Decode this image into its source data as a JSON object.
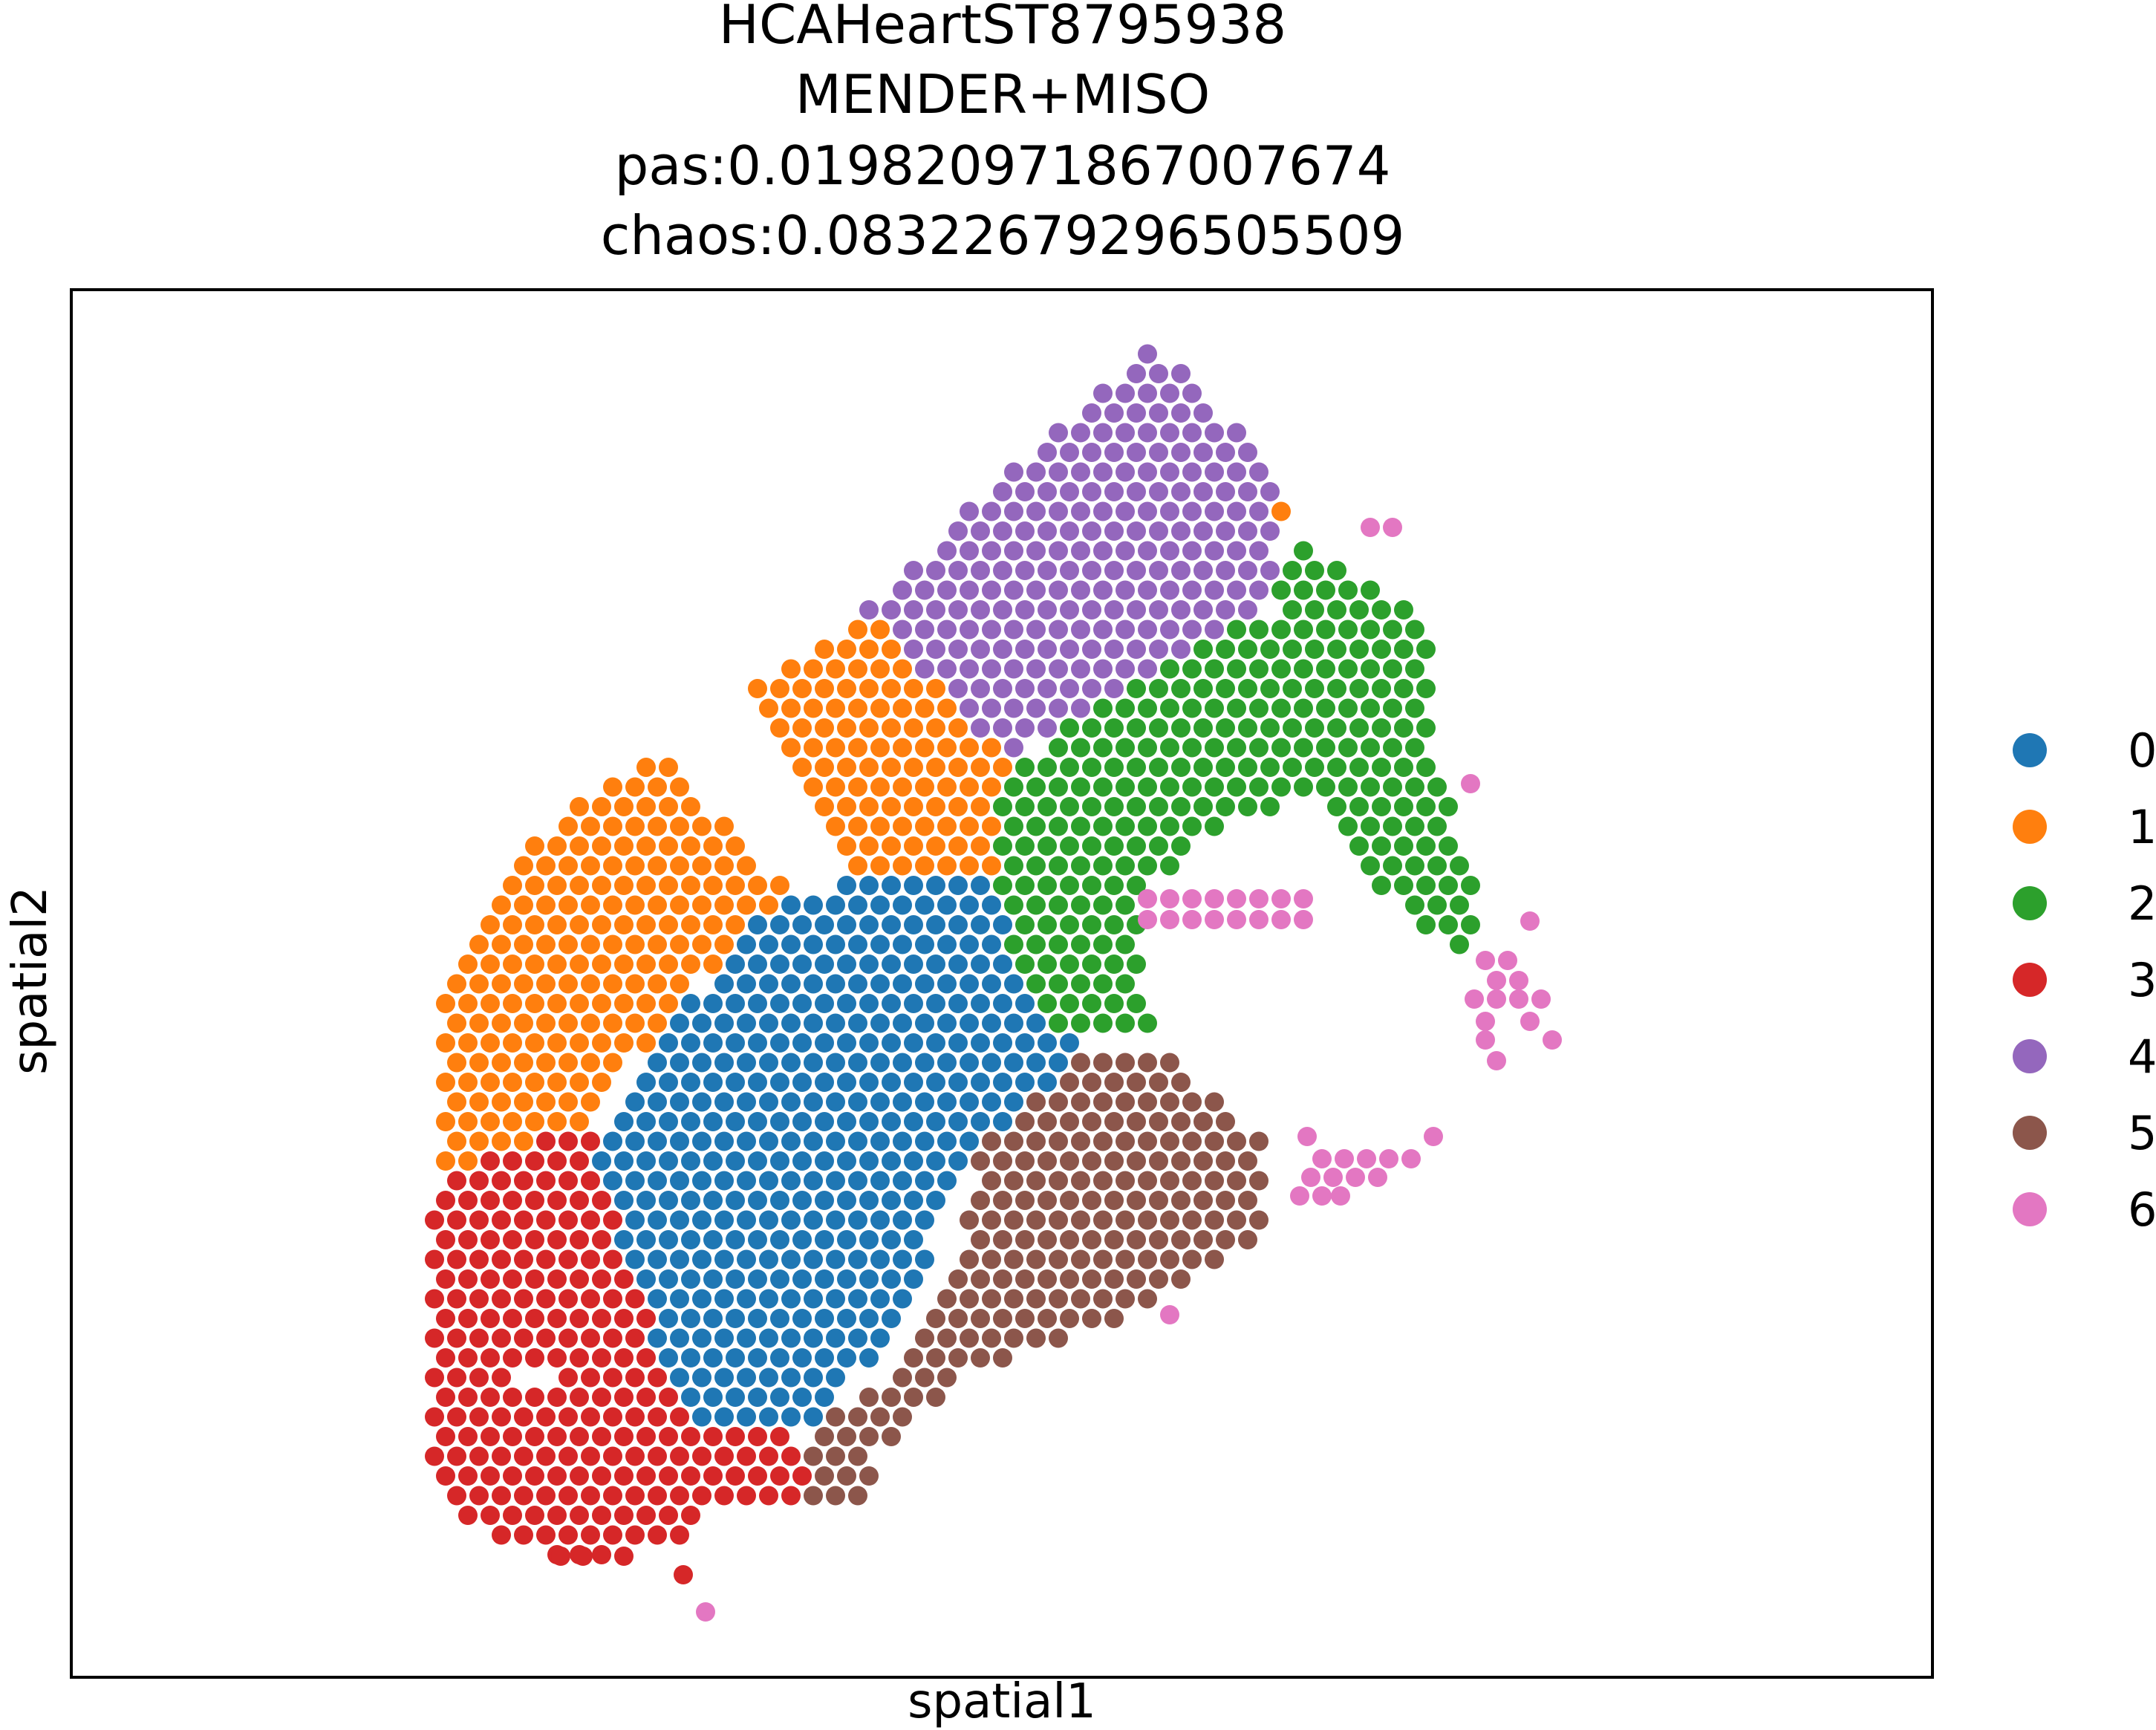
{
  "chart_data": {
    "type": "scatter",
    "title_lines": [
      "HCAHeartST8795938",
      "MENDER+MISO",
      "pas:0.01982097186700767​4",
      "chaos:0.08322679296505509"
    ],
    "xlabel": "spatial1",
    "ylabel": "spatial2",
    "grid": false,
    "ticks_shown": false,
    "legend_position": "right",
    "legend": [
      {
        "label": "0",
        "color": "#1f77b4"
      },
      {
        "label": "1",
        "color": "#ff7f0e"
      },
      {
        "label": "2",
        "color": "#2ca02c"
      },
      {
        "label": "3",
        "color": "#d62728"
      },
      {
        "label": "4",
        "color": "#9467bd"
      },
      {
        "label": "5",
        "color": "#8c564b"
      },
      {
        "label": "6",
        "color": "#e377c2"
      }
    ],
    "clusters": [
      {
        "label": "4",
        "region": [
          [
            1550,
            462
          ],
          [
            1715,
            620
          ],
          [
            1715,
            805
          ],
          [
            1505,
            925
          ],
          [
            1355,
            1015
          ],
          [
            1160,
            820
          ]
        ]
      },
      {
        "label": "1",
        "region": [
          [
            1170,
            825
          ],
          [
            1355,
            1010
          ],
          [
            1335,
            1190
          ],
          [
            1135,
            1180
          ],
          [
            1000,
            940
          ]
        ]
      },
      {
        "label": "1",
        "region": [
          [
            1715,
            670
          ],
          [
            1740,
            710
          ],
          [
            1700,
            790
          ],
          [
            1665,
            730
          ]
        ]
      },
      {
        "label": "1",
        "region": [
          [
            900,
            1020
          ],
          [
            1060,
            1200
          ],
          [
            920,
            1345
          ],
          [
            790,
            1510
          ],
          [
            600,
            1575
          ],
          [
            585,
            1340
          ],
          [
            700,
            1150
          ],
          [
            805,
            1060
          ]
        ]
      },
      {
        "label": "2",
        "region": [
          [
            1740,
            725
          ],
          [
            1920,
            830
          ],
          [
            1930,
            1000
          ],
          [
            2000,
            1240
          ],
          [
            1960,
            1290
          ],
          [
            1850,
            1185
          ],
          [
            1775,
            1060
          ],
          [
            1640,
            1115
          ],
          [
            1530,
            1220
          ],
          [
            1550,
            1395
          ],
          [
            1420,
            1405
          ],
          [
            1355,
            1250
          ],
          [
            1335,
            1050
          ],
          [
            1505,
            930
          ],
          [
            1715,
            820
          ]
        ]
      },
      {
        "label": "0",
        "region": [
          [
            1170,
            1185
          ],
          [
            1325,
            1185
          ],
          [
            1455,
            1420
          ],
          [
            1315,
            1550
          ],
          [
            1215,
            1760
          ],
          [
            1115,
            1915
          ],
          [
            925,
            1925
          ],
          [
            830,
            1650
          ],
          [
            800,
            1530
          ],
          [
            930,
            1345
          ],
          [
            1060,
            1200
          ]
        ]
      },
      {
        "label": "5",
        "region": [
          [
            1440,
            1420
          ],
          [
            1580,
            1420
          ],
          [
            1710,
            1550
          ],
          [
            1695,
            1665
          ],
          [
            1540,
            1765
          ],
          [
            1440,
            1800
          ],
          [
            1310,
            1850
          ],
          [
            1195,
            1940
          ],
          [
            1155,
            2020
          ],
          [
            1075,
            2025
          ],
          [
            1100,
            1925
          ],
          [
            1215,
            1840
          ],
          [
            1290,
            1680
          ],
          [
            1310,
            1560
          ]
        ]
      },
      {
        "label": "3",
        "region": [
          [
            795,
            1525
          ],
          [
            880,
            1650
          ],
          [
            910,
            1760
          ],
          [
            930,
            1930
          ],
          [
            1075,
            1930
          ],
          [
            1090,
            2020
          ],
          [
            950,
            2040
          ],
          [
            930,
            2085
          ],
          [
            755,
            2100
          ],
          [
            640,
            2060
          ],
          [
            585,
            1975
          ],
          [
            585,
            1595
          ],
          [
            660,
            1545
          ]
        ]
      }
    ],
    "scattered_points": [
      {
        "label": "6",
        "points": [
          [
            1845,
            710
          ],
          [
            1875,
            710
          ],
          [
            1980,
            1055
          ],
          [
            1545,
            1210
          ],
          [
            1575,
            1210
          ],
          [
            1605,
            1210
          ],
          [
            1635,
            1210
          ],
          [
            1665,
            1210
          ],
          [
            1695,
            1210
          ],
          [
            1725,
            1210
          ],
          [
            1755,
            1210
          ],
          [
            1545,
            1238
          ],
          [
            1575,
            1238
          ],
          [
            1605,
            1238
          ],
          [
            1635,
            1238
          ],
          [
            1665,
            1238
          ],
          [
            1695,
            1238
          ],
          [
            1725,
            1238
          ],
          [
            1755,
            1238
          ],
          [
            2060,
            1240
          ],
          [
            2000,
            1293
          ],
          [
            2030,
            1293
          ],
          [
            2045,
            1320
          ],
          [
            2015,
            1320
          ],
          [
            1985,
            1345
          ],
          [
            2015,
            1345
          ],
          [
            2045,
            1345
          ],
          [
            2075,
            1345
          ],
          [
            2000,
            1375
          ],
          [
            2060,
            1375
          ],
          [
            2090,
            1400
          ],
          [
            2000,
            1400
          ],
          [
            2015,
            1428
          ],
          [
            1760,
            1530
          ],
          [
            1930,
            1530
          ],
          [
            1780,
            1560
          ],
          [
            1810,
            1560
          ],
          [
            1840,
            1560
          ],
          [
            1870,
            1560
          ],
          [
            1900,
            1560
          ],
          [
            1765,
            1585
          ],
          [
            1795,
            1585
          ],
          [
            1825,
            1585
          ],
          [
            1855,
            1585
          ],
          [
            1750,
            1610
          ],
          [
            1780,
            1610
          ],
          [
            1805,
            1610
          ],
          [
            1575,
            1770
          ],
          [
            950,
            2170
          ]
        ]
      },
      {
        "label": "3",
        "points": [
          [
            755,
            2095
          ],
          [
            785,
            2095
          ],
          [
            840,
            2095
          ],
          [
            920,
            2120
          ]
        ]
      }
    ],
    "holes": [
      [
        720,
        1860
      ]
    ]
  }
}
